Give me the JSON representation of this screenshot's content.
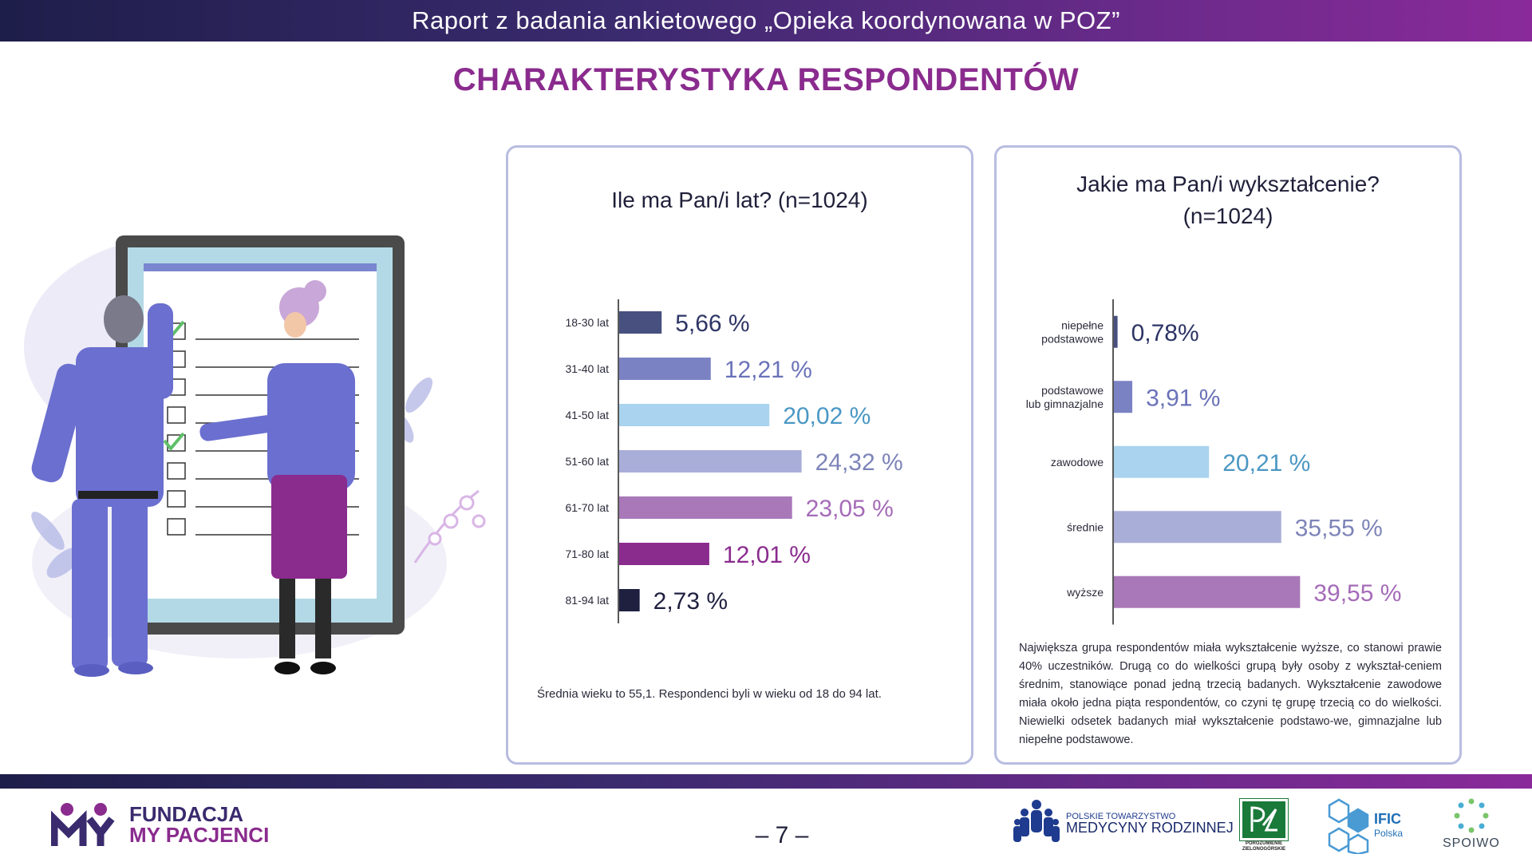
{
  "header": {
    "title": "Raport z badania ankietowego  „Opieka koordynowana w POZ”"
  },
  "page_heading": "CHARAKTERYSTYKA RESPONDENTÓW",
  "age_note": "Średnia wieku to 55,1. Respondenci byli w wieku od 18 do 94 lat.",
  "edu_note": "Największa grupa respondentów miała wykształcenie wyższe, co stanowi prawie 40% uczestników. Drugą co do wielkości grupą były osoby z wykształ-ceniem średnim, stanowiące ponad jedną trzecią badanych. Wykształcenie zawodowe miała około jedna piąta respondentów, co czyni tę grupę trzecią co do wielkości. Niewielki odsetek badanych miał wykształcenie podstawo-we, gimnazjalne lub niepełne podstawowe.",
  "footer": {
    "logo_line1": "FUNDACJA",
    "logo_line2": "MY PACJENCI",
    "page_number": "– 7 –",
    "ptmr_line1": "POLSKIE TOWARZYSTWO",
    "ptmr_line2": "MEDYCYNY RODZINNEJ",
    "pz_caption": "POROZUMIENIE ZIELONOGÓRSKIE",
    "ific_name": "IFIC",
    "ific_sub": "Polska",
    "spoiwo": "SPOIWO"
  },
  "chart_data": [
    {
      "type": "bar",
      "orientation": "horizontal",
      "title": "Ile ma Pan/i lat? (n=1024)",
      "categories": [
        "18-30 lat",
        "31-40 lat",
        "41-50 lat",
        "51-60 lat",
        "61-70 lat",
        "71-80 lat",
        "81-94 lat"
      ],
      "values": [
        5.66,
        12.21,
        20.02,
        24.32,
        23.05,
        12.01,
        2.73
      ],
      "value_labels": [
        "5,66 %",
        "12,21 %",
        "20,02 %",
        "24,32 %",
        "23,05 %",
        "12,01 %",
        "2,73 %"
      ],
      "colors": [
        "#47507f",
        "#7b82c4",
        "#a9d3ee",
        "#a9aed8",
        "#a878b8",
        "#8a2b8e",
        "#1f2040"
      ],
      "label_colors": [
        "#2d3566",
        "#6a72b8",
        "#4a97c4",
        "#7d84b8",
        "#a56bb8",
        "#8a2b8e",
        "#1f2040"
      ],
      "xlim": [
        0,
        25
      ]
    },
    {
      "type": "bar",
      "orientation": "horizontal",
      "title_lines": [
        "Jakie ma Pan/i wykształcenie?",
        "(n=1024)"
      ],
      "categories": [
        [
          "niepełne",
          "podstawowe"
        ],
        [
          "podstawowe",
          "lub gimnazjalne"
        ],
        [
          "zawodowe"
        ],
        [
          "średnie"
        ],
        [
          "wyższe"
        ]
      ],
      "values": [
        0.78,
        3.91,
        20.21,
        35.55,
        39.55
      ],
      "value_labels": [
        "0,78%",
        "3,91 %",
        "20,21 %",
        "35,55 %",
        "39,55 %"
      ],
      "colors": [
        "#47507f",
        "#7b82c4",
        "#a9d3ee",
        "#a9aed8",
        "#a878b8"
      ],
      "label_colors": [
        "#2d3566",
        "#6a72b8",
        "#4a97c4",
        "#7d84b8",
        "#a56bb8"
      ],
      "xlim": [
        0,
        40
      ]
    }
  ]
}
